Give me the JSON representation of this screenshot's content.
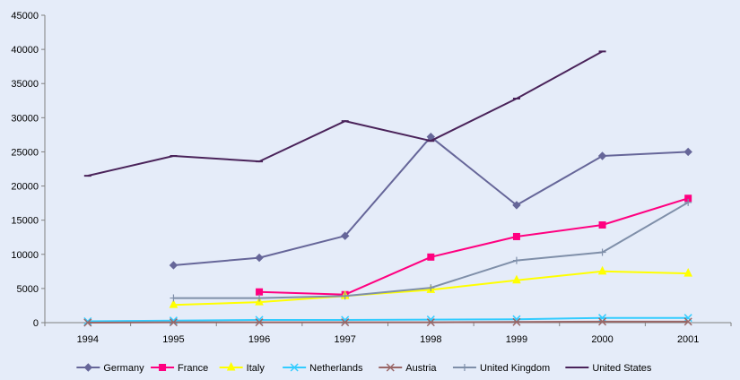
{
  "chart_data": {
    "type": "line",
    "title": "",
    "xlabel": "",
    "ylabel": "",
    "categories": [
      "1994",
      "1995",
      "1996",
      "1997",
      "1998",
      "1999",
      "2000",
      "2001"
    ],
    "ylim": [
      0,
      45000
    ],
    "yticks": [
      "0",
      "5000",
      "10000",
      "15000",
      "20000",
      "25000",
      "30000",
      "35000",
      "40000",
      "45000"
    ],
    "grid": false,
    "legend_position": "bottom",
    "series": [
      {
        "name": "Germany",
        "color": "#666699",
        "marker": "diamond",
        "values": [
          null,
          8400,
          9500,
          12700,
          27200,
          17200,
          24400,
          25000
        ]
      },
      {
        "name": "France",
        "color": "#ff0080",
        "marker": "square",
        "values": [
          null,
          null,
          4500,
          4100,
          9600,
          12600,
          14300,
          18200
        ]
      },
      {
        "name": "Italy",
        "color": "#ffff00",
        "marker": "triangle",
        "values": [
          null,
          2600,
          3000,
          3900,
          4800,
          6200,
          7500,
          7200
        ]
      },
      {
        "name": "Netherlands",
        "color": "#33ccff",
        "marker": "x",
        "values": [
          200,
          300,
          400,
          400,
          450,
          500,
          700,
          700
        ]
      },
      {
        "name": "Austria",
        "color": "#996666",
        "marker": "x",
        "values": [
          0,
          50,
          50,
          50,
          50,
          100,
          150,
          150
        ]
      },
      {
        "name": "United Kingdom",
        "color": "#7f8fa9",
        "marker": "plus",
        "values": [
          null,
          3600,
          3600,
          3900,
          5100,
          9100,
          10300,
          17600
        ]
      },
      {
        "name": "United States",
        "color": "#4a235a",
        "marker": "dash",
        "values": [
          21500,
          24400,
          23600,
          29500,
          26600,
          32800,
          39700,
          null
        ]
      }
    ]
  }
}
